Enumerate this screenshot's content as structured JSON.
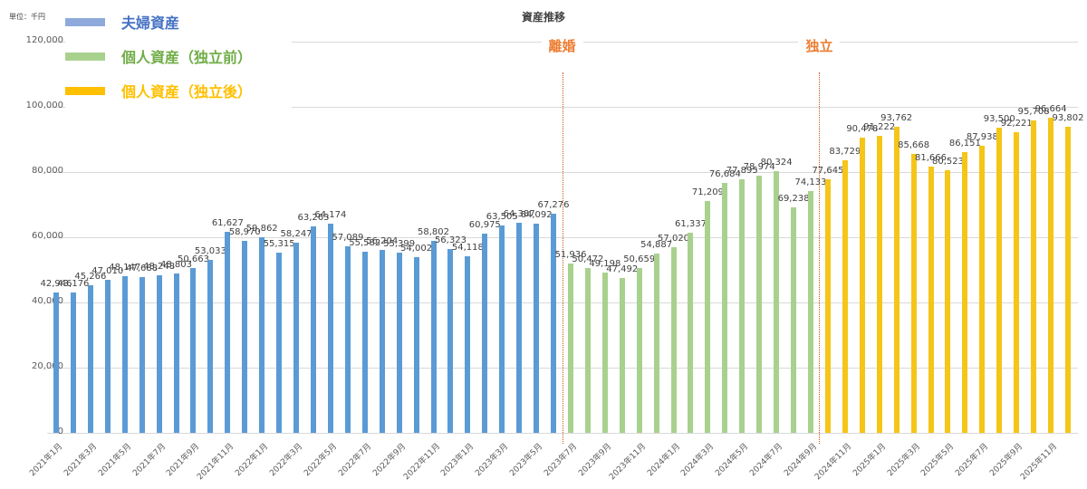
{
  "chart_data": {
    "type": "bar",
    "title": "資産推移",
    "unit_label": "単位：千円",
    "xlabel": "",
    "ylabel": "",
    "ylim": [
      0,
      120000
    ],
    "yticks": [
      0,
      20000,
      40000,
      60000,
      80000,
      100000,
      120000
    ],
    "ytick_labels": [
      "0",
      "20,000",
      "40,000",
      "60,000",
      "80,000",
      "100,000",
      "120,000"
    ],
    "grid": true,
    "legend_position": "top-left",
    "annotations": [
      {
        "label": "離婚",
        "between": [
          "2023年6月",
          "2023年7月"
        ],
        "color": "#ed7d31"
      },
      {
        "label": "独立",
        "between": [
          "2024年9月",
          "2024年10月"
        ],
        "color": "#ed7d31"
      }
    ],
    "categories": [
      "2021年1月",
      "2021年2月",
      "2021年3月",
      "2021年4月",
      "2021年5月",
      "2021年6月",
      "2021年7月",
      "2021年8月",
      "2021年9月",
      "2021年10月",
      "2021年11月",
      "2021年12月",
      "2022年1月",
      "2022年2月",
      "2022年3月",
      "2022年4月",
      "2022年5月",
      "2022年6月",
      "2022年7月",
      "2022年8月",
      "2022年9月",
      "2022年10月",
      "2022年11月",
      "2022年12月",
      "2023年1月",
      "2023年2月",
      "2023年3月",
      "2023年4月",
      "2023年5月",
      "2023年6月",
      "2023年7月",
      "2023年8月",
      "2023年9月",
      "2023年10月",
      "2023年11月",
      "2023年12月",
      "2024年1月",
      "2024年2月",
      "2024年3月",
      "2024年4月",
      "2024年5月",
      "2024年6月",
      "2024年7月",
      "2024年8月",
      "2024年9月",
      "2024年10月",
      "2024年11月",
      "2024年12月",
      "2025年1月",
      "2025年2月",
      "2025年3月",
      "2025年4月",
      "2025年5月",
      "2025年6月",
      "2025年7月",
      "2025年8月",
      "2025年9月",
      "2025年10月",
      "2025年11月",
      "2025年12月"
    ],
    "series": [
      {
        "name": "夫婦資産",
        "color": "#5b9bd5",
        "legend_color": "#8eaadb",
        "label_color": "#4472c4",
        "start_index": 0,
        "values": [
          42946,
          43176,
          45266,
          47010,
          48147,
          47688,
          48248,
          48803,
          50663,
          53033,
          61627,
          58970,
          59862,
          55315,
          58247,
          63263,
          64174,
          57089,
          55582,
          56204,
          55399,
          54002,
          58802,
          56323,
          54118,
          60975,
          63505,
          64387,
          64092,
          67276
        ]
      },
      {
        "name": "個人資産（独立前）",
        "color": "#a9d18e",
        "legend_color": "#a9d18e",
        "label_color": "#70ad47",
        "start_index": 30,
        "values": [
          51936,
          50472,
          49198,
          47492,
          50659,
          54887,
          57020,
          61337,
          71209,
          76684,
          77895,
          78974,
          80324,
          69238,
          74133
        ]
      },
      {
        "name": "個人資産（独立後）",
        "color": "#f5c518",
        "legend_color": "#ffc000",
        "label_color": "#ffc000",
        "start_index": 45,
        "values": [
          77645,
          83729,
          90478,
          91222,
          93762,
          85668,
          81666,
          80523,
          86151,
          87938,
          93500,
          92221,
          95708,
          96664,
          93802
        ]
      }
    ]
  }
}
